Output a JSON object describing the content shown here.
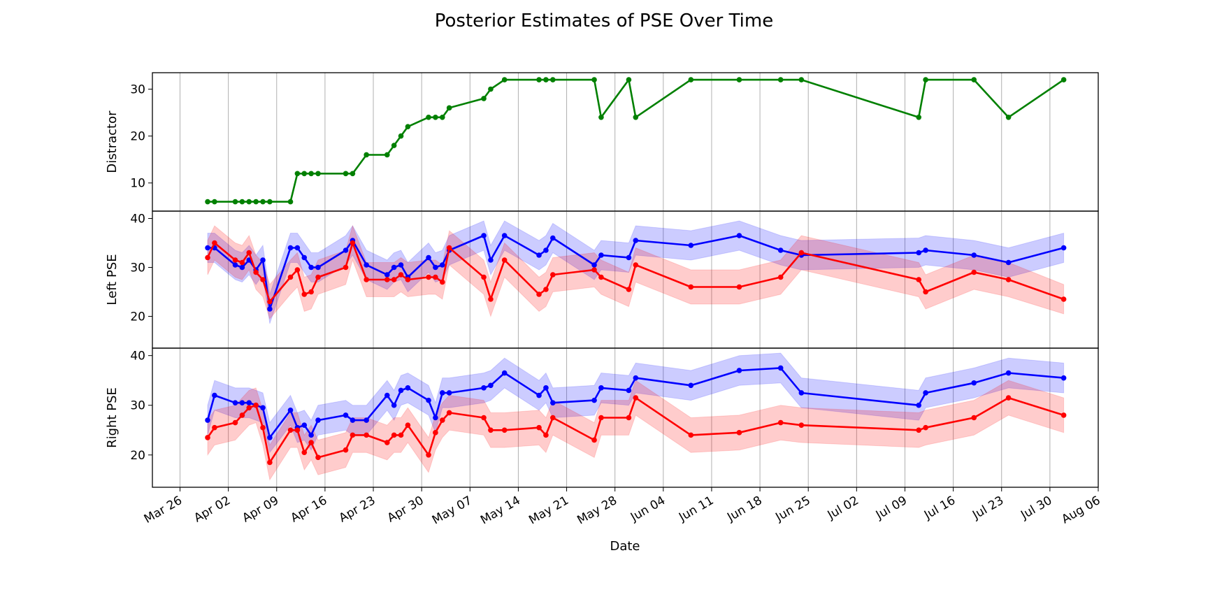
{
  "chart_data": {
    "title": "Posterior Estimates of PSE Over Time",
    "xlabel": "Date",
    "x_range": [
      "2024-03-22",
      "2024-08-06"
    ],
    "x_tick_dates": [
      "2024-03-26",
      "2024-04-02",
      "2024-04-09",
      "2024-04-16",
      "2024-04-23",
      "2024-04-30",
      "2024-05-07",
      "2024-05-14",
      "2024-05-21",
      "2024-05-28",
      "2024-06-04",
      "2024-06-11",
      "2024-06-18",
      "2024-06-25",
      "2024-07-02",
      "2024-07-09",
      "2024-07-16",
      "2024-07-23",
      "2024-07-30",
      "2024-08-06"
    ],
    "x_tick_labels": [
      "Mar 26",
      "Apr 02",
      "Apr 09",
      "Apr 16",
      "Apr 23",
      "Apr 30",
      "May 07",
      "May 14",
      "May 21",
      "May 28",
      "Jun 04",
      "Jun 11",
      "Jun 18",
      "Jun 25",
      "Jul 02",
      "Jul 09",
      "Jul 16",
      "Jul 23",
      "Jul 30",
      "Aug 06"
    ],
    "grid": "vertical",
    "panels": [
      {
        "type": "line",
        "ylabel": "Distractor",
        "ylim": [
          4,
          33.5
        ],
        "yticks": [
          10,
          20,
          30
        ],
        "series": [
          {
            "color": "#008000",
            "x": [
              "2024-03-30",
              "2024-03-31",
              "2024-04-03",
              "2024-04-04",
              "2024-04-05",
              "2024-04-06",
              "2024-04-07",
              "2024-04-08",
              "2024-04-11",
              "2024-04-12",
              "2024-04-13",
              "2024-04-14",
              "2024-04-15",
              "2024-04-19",
              "2024-04-20",
              "2024-04-22",
              "2024-04-25",
              "2024-04-26",
              "2024-04-27",
              "2024-04-28",
              "2024-05-01",
              "2024-05-02",
              "2024-05-03",
              "2024-05-04",
              "2024-05-09",
              "2024-05-10",
              "2024-05-12",
              "2024-05-17",
              "2024-05-18",
              "2024-05-19",
              "2024-05-25",
              "2024-05-26",
              "2024-05-30",
              "2024-05-31",
              "2024-06-08",
              "2024-06-15",
              "2024-06-21",
              "2024-06-24",
              "2024-07-11",
              "2024-07-12",
              "2024-07-19",
              "2024-07-24",
              "2024-08-01"
            ],
            "y": [
              6,
              6,
              6,
              6,
              6,
              6,
              6,
              6,
              6,
              12,
              12,
              12,
              12,
              12,
              12,
              16,
              16,
              18,
              20,
              22,
              24,
              24,
              24,
              26,
              28,
              30,
              32,
              32,
              32,
              32,
              32,
              24,
              32,
              24,
              32,
              32,
              32,
              32,
              24,
              32,
              32,
              24,
              32
            ]
          }
        ]
      },
      {
        "type": "line",
        "ylabel": "Left PSE",
        "ylim": [
          13.5,
          41.5
        ],
        "yticks": [
          20,
          30,
          40
        ],
        "series": [
          {
            "color": "#0000ff",
            "band_color": "#0000ff",
            "x": [
              "2024-03-30",
              "2024-03-31",
              "2024-04-03",
              "2024-04-04",
              "2024-04-05",
              "2024-04-06",
              "2024-04-07",
              "2024-04-08",
              "2024-04-11",
              "2024-04-12",
              "2024-04-13",
              "2024-04-14",
              "2024-04-15",
              "2024-04-19",
              "2024-04-20",
              "2024-04-22",
              "2024-04-25",
              "2024-04-26",
              "2024-04-27",
              "2024-04-28",
              "2024-05-01",
              "2024-05-02",
              "2024-05-03",
              "2024-05-04",
              "2024-05-09",
              "2024-05-10",
              "2024-05-12",
              "2024-05-17",
              "2024-05-18",
              "2024-05-19",
              "2024-05-25",
              "2024-05-26",
              "2024-05-30",
              "2024-05-31",
              "2024-06-08",
              "2024-06-15",
              "2024-06-21",
              "2024-06-24",
              "2024-07-11",
              "2024-07-12",
              "2024-07-19",
              "2024-07-24",
              "2024-08-01"
            ],
            "y": [
              34,
              34,
              30.5,
              30,
              31.5,
              29.5,
              31.5,
              21.5,
              34,
              34,
              32,
              30,
              30,
              33.5,
              35.5,
              30.5,
              28.5,
              30,
              30.5,
              28,
              32,
              30,
              30.5,
              33.5,
              36.5,
              31.5,
              36.5,
              32.5,
              33.5,
              36,
              30.5,
              32.5,
              32,
              35.5,
              34.5,
              36.5,
              33.5,
              32.5,
              33,
              33.5,
              32.5,
              31,
              34
            ],
            "lo": [
              31,
              31,
              27.5,
              27,
              28.5,
              26.5,
              28.5,
              18.5,
              31,
              31,
              29,
              27,
              27,
              30.5,
              32.5,
              27.5,
              25.5,
              27,
              27.5,
              25,
              29,
              27,
              27.5,
              30.5,
              33.5,
              28.5,
              33.5,
              29.5,
              30.5,
              33,
              27.5,
              29.5,
              29,
              32.5,
              31.5,
              33.5,
              30.5,
              29.5,
              30,
              30.5,
              29.5,
              28,
              31
            ],
            "hi": [
              37,
              37,
              33.5,
              33,
              34.5,
              32.5,
              34.5,
              24.5,
              37,
              37,
              35,
              33,
              33,
              36.5,
              38.5,
              33.5,
              31.5,
              33,
              33.5,
              31,
              35,
              33,
              33.5,
              36.5,
              39.5,
              34.5,
              39.5,
              35.5,
              36.5,
              39,
              33.5,
              35.5,
              35,
              38.5,
              37.5,
              39.5,
              36.5,
              35.5,
              36,
              36.5,
              35.5,
              34,
              37
            ]
          },
          {
            "color": "#ff0000",
            "band_color": "#ff0000",
            "x": [
              "2024-03-30",
              "2024-03-31",
              "2024-04-03",
              "2024-04-04",
              "2024-04-05",
              "2024-04-06",
              "2024-04-07",
              "2024-04-08",
              "2024-04-11",
              "2024-04-12",
              "2024-04-13",
              "2024-04-14",
              "2024-04-15",
              "2024-04-19",
              "2024-04-20",
              "2024-04-22",
              "2024-04-25",
              "2024-04-26",
              "2024-04-27",
              "2024-04-28",
              "2024-05-01",
              "2024-05-02",
              "2024-05-03",
              "2024-05-04",
              "2024-05-09",
              "2024-05-10",
              "2024-05-12",
              "2024-05-17",
              "2024-05-18",
              "2024-05-19",
              "2024-05-25",
              "2024-05-26",
              "2024-05-30",
              "2024-05-31",
              "2024-06-08",
              "2024-06-15",
              "2024-06-21",
              "2024-06-24",
              "2024-07-11",
              "2024-07-12",
              "2024-07-19",
              "2024-07-24",
              "2024-08-01"
            ],
            "y": [
              32,
              35,
              31.5,
              31,
              33,
              29,
              27.5,
              23,
              28,
              29.5,
              24.5,
              25,
              28,
              30,
              35,
              27.5,
              27.5,
              27.5,
              28.5,
              27.5,
              28,
              28,
              27,
              34,
              28,
              23.5,
              31.5,
              24.5,
              25.5,
              28.5,
              29.5,
              28,
              25.5,
              30.5,
              26,
              26,
              28,
              33,
              27.5,
              25,
              29,
              27.5,
              23.5
            ],
            "lo": [
              28.5,
              31.5,
              28,
              27.5,
              29.5,
              25.5,
              24,
              19.5,
              24.5,
              26,
              21,
              21.5,
              24.5,
              26.5,
              31.5,
              24,
              24,
              24,
              25,
              24,
              24.5,
              24.5,
              23.5,
              30.5,
              24.5,
              20,
              28,
              21,
              22,
              25,
              26,
              24.5,
              22,
              27,
              22.5,
              22.5,
              24.5,
              29.5,
              24,
              21.5,
              25.5,
              24,
              20.5
            ],
            "hi": [
              35.5,
              38.5,
              35,
              34.5,
              36.5,
              32.5,
              31,
              26.5,
              31.5,
              33,
              28,
              28.5,
              31.5,
              33.5,
              38.5,
              31,
              31,
              31,
              32,
              31,
              31.5,
              31.5,
              30.5,
              37.5,
              31.5,
              27,
              35,
              28,
              29,
              32,
              33,
              31.5,
              29,
              34,
              29.5,
              29.5,
              31.5,
              36.5,
              31,
              28.5,
              32.5,
              31,
              26.5
            ]
          }
        ]
      },
      {
        "type": "line",
        "ylabel": "Right PSE",
        "ylim": [
          13.5,
          41.5
        ],
        "yticks": [
          20,
          30,
          40
        ],
        "series": [
          {
            "color": "#0000ff",
            "band_color": "#0000ff",
            "x": [
              "2024-03-30",
              "2024-03-31",
              "2024-04-03",
              "2024-04-04",
              "2024-04-05",
              "2024-04-06",
              "2024-04-07",
              "2024-04-08",
              "2024-04-11",
              "2024-04-12",
              "2024-04-13",
              "2024-04-14",
              "2024-04-15",
              "2024-04-19",
              "2024-04-20",
              "2024-04-22",
              "2024-04-25",
              "2024-04-26",
              "2024-04-27",
              "2024-04-28",
              "2024-05-01",
              "2024-05-02",
              "2024-05-03",
              "2024-05-04",
              "2024-05-09",
              "2024-05-10",
              "2024-05-12",
              "2024-05-17",
              "2024-05-18",
              "2024-05-19",
              "2024-05-25",
              "2024-05-26",
              "2024-05-30",
              "2024-05-31",
              "2024-06-08",
              "2024-06-15",
              "2024-06-21",
              "2024-06-24",
              "2024-07-11",
              "2024-07-12",
              "2024-07-19",
              "2024-07-24",
              "2024-08-01"
            ],
            "y": [
              27,
              32,
              30.5,
              30.5,
              30.5,
              30,
              29.5,
              23.5,
              29,
              25.5,
              26,
              24,
              27,
              28,
              27,
              27,
              32,
              30,
              33,
              33.5,
              31,
              27.5,
              32.5,
              32.5,
              33.5,
              34,
              36.5,
              32,
              33.5,
              30.5,
              31,
              33.5,
              33,
              35.5,
              34,
              37,
              37.5,
              32.5,
              30,
              32.5,
              34.5,
              36.5,
              35.5
            ],
            "lo": [
              24,
              29,
              27.5,
              27.5,
              27.5,
              27,
              26.5,
              20.5,
              26,
              22.5,
              23,
              21,
              24,
              25,
              24,
              24,
              29,
              27,
              30,
              30.5,
              28,
              24.5,
              29.5,
              29.5,
              30.5,
              31,
              33.5,
              29,
              30.5,
              27.5,
              28,
              30.5,
              30,
              32.5,
              31,
              34,
              34.5,
              29.5,
              27,
              29.5,
              31.5,
              33.5,
              32.5
            ],
            "hi": [
              30,
              35,
              33.5,
              33.5,
              33.5,
              33,
              32.5,
              26.5,
              32,
              28.5,
              29,
              27,
              30,
              31,
              30,
              30,
              35,
              33,
              36,
              36.5,
              34,
              30.5,
              35.5,
              35.5,
              36.5,
              37,
              39.5,
              35,
              36.5,
              33.5,
              34,
              36.5,
              36,
              38.5,
              37,
              40,
              40.5,
              35.5,
              33,
              35.5,
              37.5,
              39.5,
              38.5
            ]
          },
          {
            "color": "#ff0000",
            "band_color": "#ff0000",
            "x": [
              "2024-03-30",
              "2024-03-31",
              "2024-04-03",
              "2024-04-04",
              "2024-04-05",
              "2024-04-06",
              "2024-04-07",
              "2024-04-08",
              "2024-04-11",
              "2024-04-12",
              "2024-04-13",
              "2024-04-14",
              "2024-04-15",
              "2024-04-19",
              "2024-04-20",
              "2024-04-22",
              "2024-04-25",
              "2024-04-26",
              "2024-04-27",
              "2024-04-28",
              "2024-05-01",
              "2024-05-02",
              "2024-05-03",
              "2024-05-04",
              "2024-05-09",
              "2024-05-10",
              "2024-05-12",
              "2024-05-17",
              "2024-05-18",
              "2024-05-19",
              "2024-05-25",
              "2024-05-26",
              "2024-05-30",
              "2024-05-31",
              "2024-06-08",
              "2024-06-15",
              "2024-06-21",
              "2024-06-24",
              "2024-07-11",
              "2024-07-12",
              "2024-07-19",
              "2024-07-24",
              "2024-08-01"
            ],
            "y": [
              23.5,
              25.5,
              26.5,
              28,
              29.5,
              30,
              25.5,
              18.5,
              25,
              25,
              20.5,
              22.5,
              19.5,
              21,
              24,
              24,
              22.5,
              24,
              24,
              26,
              20,
              24.5,
              27,
              28.5,
              27.5,
              25,
              25,
              25.5,
              24,
              27.5,
              23,
              27.5,
              27.5,
              31.5,
              24,
              24.5,
              26.5,
              26,
              25,
              25.5,
              27.5,
              31.5,
              28
            ],
            "lo": [
              20,
              22,
              23,
              24.5,
              26,
              26.5,
              22,
              15,
              21.5,
              21.5,
              17,
              19,
              16,
              17.5,
              20.5,
              20.5,
              19,
              20.5,
              20.5,
              22.5,
              16.5,
              21,
              23.5,
              25,
              24,
              21.5,
              21.5,
              22,
              20.5,
              24,
              19.5,
              24,
              24,
              28,
              20.5,
              21,
              23,
              22.5,
              21.5,
              22,
              24,
              28,
              24.5
            ],
            "hi": [
              27,
              29,
              30,
              31.5,
              33,
              33.5,
              29,
              22,
              28.5,
              28.5,
              24,
              26,
              23,
              24.5,
              27.5,
              27.5,
              26,
              27.5,
              27.5,
              29.5,
              23.5,
              28,
              30.5,
              32,
              31,
              28.5,
              28.5,
              29,
              27.5,
              31,
              26.5,
              31,
              31,
              35,
              27.5,
              28,
              30,
              29.5,
              28.5,
              29,
              31,
              35,
              31.5
            ]
          }
        ]
      }
    ]
  }
}
